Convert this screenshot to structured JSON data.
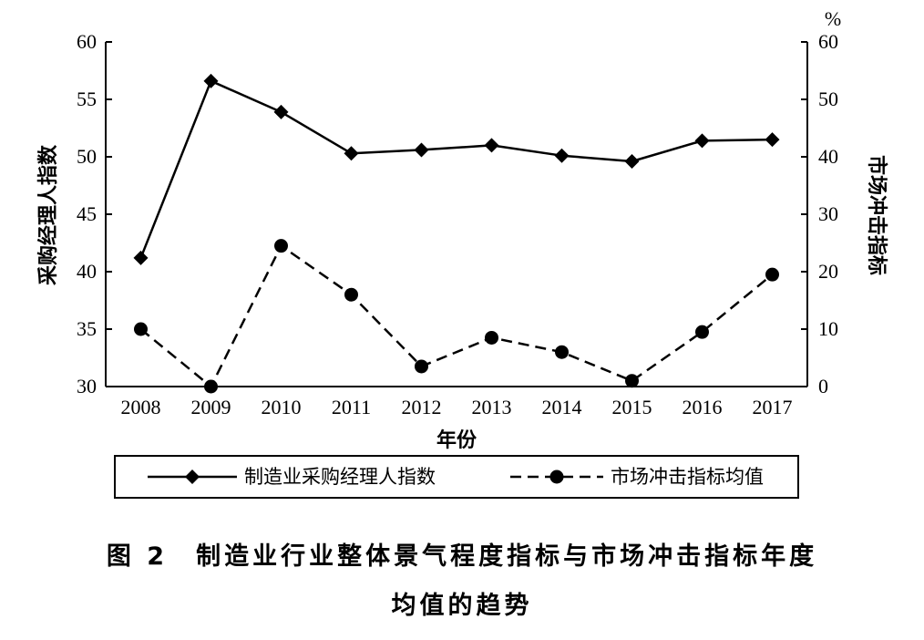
{
  "chart_data": {
    "type": "line",
    "x": [
      "2008",
      "2009",
      "2010",
      "2011",
      "2012",
      "2013",
      "2014",
      "2015",
      "2016",
      "2017"
    ],
    "xlabel": "年份",
    "ylabel_left": "采购经理人指数",
    "ylabel_right": "市场冲击指标",
    "right_unit": "%",
    "ylim_left": [
      30,
      60
    ],
    "ylim_right": [
      0,
      60
    ],
    "yticks_left": [
      "30",
      "35",
      "40",
      "45",
      "50",
      "55",
      "60"
    ],
    "yticks_right": [
      "0",
      "10",
      "20",
      "30",
      "40",
      "50",
      "60"
    ],
    "grid": false,
    "legend_position": "bottom",
    "series": [
      {
        "name": "制造业采购经理人指数",
        "axis": "left",
        "style": "solid",
        "marker": "diamond",
        "values": [
          41.2,
          56.6,
          53.9,
          50.3,
          50.6,
          51.0,
          50.1,
          49.6,
          51.4,
          51.5
        ]
      },
      {
        "name": "市场冲击指标均值",
        "axis": "right",
        "style": "dashed",
        "marker": "circle",
        "values": [
          10.0,
          0.0,
          24.5,
          16.0,
          3.5,
          8.5,
          6.0,
          1.0,
          9.5,
          19.5
        ]
      }
    ]
  },
  "caption": {
    "line1": "图 2　制造业行业整体景气程度指标与市场冲击指标年度",
    "line2": "均值的趋势"
  }
}
